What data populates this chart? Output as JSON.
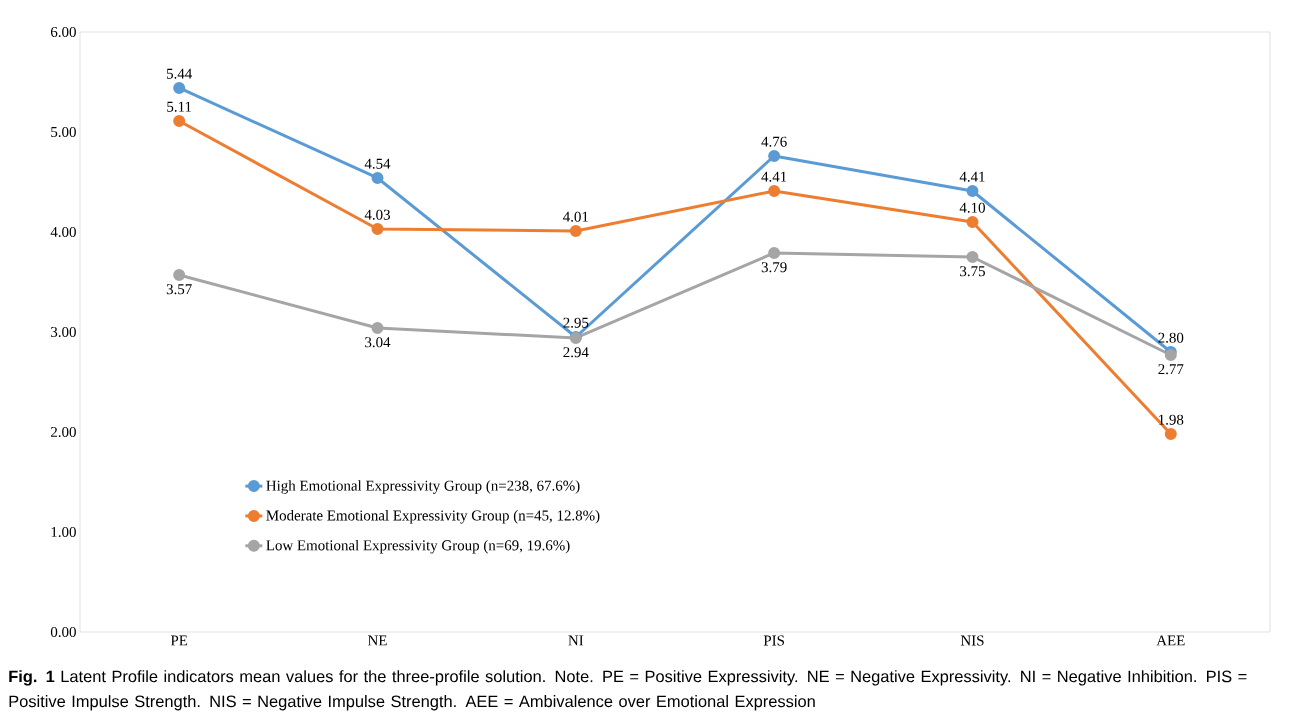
{
  "chart_data": {
    "type": "line",
    "categories": [
      "PE",
      "NE",
      "NI",
      "PIS",
      "NIS",
      "AEE"
    ],
    "series": [
      {
        "name": "High Emotional Expressivity Group (n=238, 67.6%)",
        "color": "#5b9bd5",
        "values": [
          5.44,
          4.54,
          2.95,
          4.76,
          4.41,
          2.8
        ],
        "value_labels": [
          "5.44",
          "4.54",
          "2.95",
          "4.76",
          "4.41",
          "2.80"
        ]
      },
      {
        "name": "Moderate Emotional Expressivity Group (n=45, 12.8%)",
        "color": "#ed7d31",
        "values": [
          5.11,
          4.03,
          4.01,
          4.41,
          4.1,
          1.98
        ],
        "value_labels": [
          "5.11",
          "4.03",
          "4.01",
          "4.41",
          "4.10",
          "1.98"
        ]
      },
      {
        "name": "Low Emotional Expressivity Group (n=69, 19.6%)",
        "color": "#a5a5a5",
        "values": [
          3.57,
          3.04,
          2.94,
          3.79,
          3.75,
          2.77
        ],
        "value_labels": [
          "3.57",
          "3.04",
          "2.94",
          "3.79",
          "3.75",
          "2.77"
        ]
      }
    ],
    "ylim": [
      0,
      6
    ],
    "yticks": [
      {
        "value": 0,
        "label": "0.00"
      },
      {
        "value": 1,
        "label": "1.00"
      },
      {
        "value": 2,
        "label": "2.00"
      },
      {
        "value": 3,
        "label": "3.00"
      },
      {
        "value": 4,
        "label": "4.00"
      },
      {
        "value": 5,
        "label": "5.00"
      },
      {
        "value": 6,
        "label": "6.00"
      }
    ],
    "marker": "circle",
    "line_style": "solid",
    "grid": false,
    "legend": "bottom left",
    "annotations": [
      "**Fig. 1** Latent Profile indicators mean values for the three-profile solution. Note. PE = Positive Expressivity. NE = Negative Expressivity. NI = Negative Inhibition. PIS = Positive Impulse Strength. NIS = Negative Impulse Strength. AEE = Ambivalence over Emotional Expression"
    ]
  }
}
